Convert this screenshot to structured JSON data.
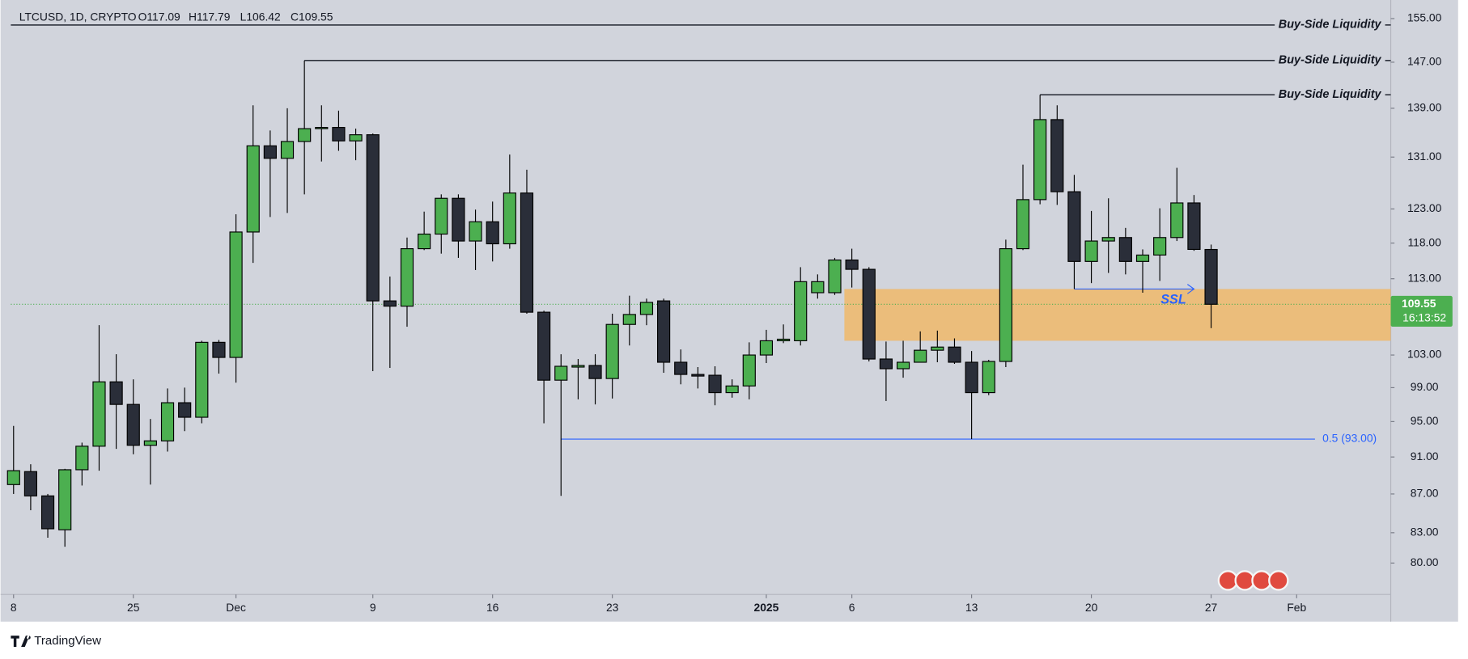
{
  "chart_data": {
    "type": "candlestick",
    "symbol": "LTCUSD, 1D, CRYPTO",
    "ohlc_labels": [
      "O117.09",
      "H117.79",
      "L106.42",
      "C109.55"
    ],
    "log_scale": true,
    "up_color": "#4caf50",
    "down_color": "#2a2e39",
    "background": "#d1d4dc",
    "x": [
      0,
      1,
      2,
      3,
      4,
      5,
      6,
      7,
      8,
      9,
      10,
      11,
      12,
      13,
      14,
      15,
      16,
      17,
      18,
      19,
      20,
      21,
      22,
      23,
      24,
      25,
      26,
      27,
      28,
      29,
      30,
      31,
      32,
      33,
      34,
      35,
      36,
      37,
      38,
      39,
      40,
      41,
      42,
      43,
      44,
      45,
      46,
      47,
      48,
      49,
      50,
      51,
      52,
      53,
      54,
      55,
      56,
      57,
      58,
      59,
      60,
      61,
      62,
      63,
      64,
      65,
      66,
      67,
      68,
      69,
      70
    ],
    "open": [
      88,
      89.4,
      86.8,
      83.3,
      89.6,
      92.2,
      99.7,
      97,
      92.3,
      92.8,
      97.2,
      95.5,
      104.6,
      102.7,
      119.6,
      132.8,
      130.8,
      133.5,
      135.6,
      135.8,
      133.6,
      134.6,
      110,
      109.3,
      117.2,
      119.3,
      124.6,
      118.3,
      121.1,
      117.9,
      125.4,
      108.5,
      99.9,
      101.5,
      101.7,
      100.1,
      106.9,
      108.2,
      110,
      102.1,
      100.6,
      100.5,
      98.4,
      99.2,
      103,
      104.8,
      104.8,
      111.1,
      111.1,
      115.6,
      114.3,
      102.5,
      101.3,
      102.1,
      103.6,
      104,
      102.1,
      98.4,
      102.2,
      117.2,
      124.4,
      137.1,
      125.6,
      115.4,
      118.3,
      118.8,
      115.4,
      116.3,
      118.8,
      123.9,
      117.09
    ],
    "high": [
      94.5,
      90.2,
      87,
      89.7,
      92.6,
      106.8,
      103.1,
      100,
      95.3,
      98.9,
      99,
      104.8,
      104.9,
      122.2,
      139.5,
      135.3,
      139,
      147.3,
      139.5,
      138.6,
      135.6,
      134.8,
      113.3,
      118.8,
      122.6,
      125.2,
      125.2,
      122.9,
      124.1,
      131.4,
      129,
      108.7,
      103.1,
      102.5,
      103.1,
      108.3,
      110.7,
      110.3,
      110.3,
      103.7,
      101.5,
      101.6,
      100,
      104.6,
      106.2,
      106.9,
      114.6,
      113.6,
      115.9,
      117.2,
      114.6,
      104.7,
      104.8,
      106,
      106.1,
      105.1,
      103.5,
      102.4,
      118.5,
      129.8,
      141.3,
      139.5,
      128.2,
      122.7,
      124.6,
      120.2,
      117.1,
      123.1,
      129.3,
      125.1,
      117.79
    ],
    "low": [
      87,
      85.3,
      82.5,
      81.6,
      87.9,
      89.5,
      91.9,
      91.3,
      88,
      91.6,
      93.9,
      94.8,
      100.7,
      99.6,
      115.2,
      121.8,
      122.4,
      125.2,
      130.3,
      132,
      130.5,
      101,
      101.4,
      106.6,
      117,
      116.5,
      115.9,
      114.2,
      115.4,
      117.2,
      108.3,
      94.8,
      86.8,
      97.6,
      97,
      97.7,
      104.2,
      106.8,
      100.8,
      99.4,
      98.9,
      96.9,
      97.8,
      97.6,
      102,
      104.5,
      104.2,
      110.3,
      110.8,
      111.8,
      102.2,
      97.4,
      100.2,
      102.1,
      102.1,
      101.9,
      93,
      98.1,
      101.5,
      117,
      123.7,
      123.6,
      111.6,
      112.4,
      113.8,
      113.6,
      111.1,
      112.7,
      118.3,
      116.9,
      106.42
    ],
    "close": [
      89.5,
      86.8,
      83.4,
      89.6,
      92.2,
      99.7,
      97,
      92.3,
      92.8,
      97.2,
      95.5,
      104.6,
      102.7,
      119.6,
      132.8,
      130.8,
      133.5,
      135.6,
      135.8,
      133.6,
      134.6,
      110,
      109.3,
      117.2,
      119.3,
      124.6,
      118.3,
      121.1,
      117.9,
      125.4,
      108.5,
      99.9,
      101.6,
      101.7,
      100.1,
      106.9,
      108.2,
      109.8,
      102.1,
      100.6,
      100.4,
      98.4,
      99.2,
      103,
      104.8,
      105,
      112.6,
      112.6,
      115.6,
      114.3,
      102.5,
      101.3,
      102.1,
      103.6,
      104,
      102.1,
      98.4,
      102.2,
      117.2,
      124.4,
      137.1,
      125.6,
      115.4,
      118.3,
      118.8,
      115.4,
      116.3,
      118.8,
      123.9,
      117.1,
      109.55
    ],
    "xlim": [
      -0.16,
      80.5
    ],
    "xticks": [
      {
        "value": 0,
        "label": "8"
      },
      {
        "value": 7,
        "label": "25"
      },
      {
        "value": 13,
        "label": "Dec"
      },
      {
        "value": 21,
        "label": "9"
      },
      {
        "value": 28,
        "label": "16"
      },
      {
        "value": 35,
        "label": "23"
      },
      {
        "value": 44,
        "label": "2025"
      },
      {
        "value": 49,
        "label": "6"
      },
      {
        "value": 56,
        "label": "13"
      },
      {
        "value": 63,
        "label": "20"
      },
      {
        "value": 70,
        "label": "27"
      },
      {
        "value": 75,
        "label": "Feb"
      }
    ],
    "ylim": [
      77,
      158
    ],
    "yticks": [
      {
        "value": 155,
        "label": "155.00"
      },
      {
        "value": 147,
        "label": "147.00"
      },
      {
        "value": 139,
        "label": "139.00"
      },
      {
        "value": 131,
        "label": "131.00"
      },
      {
        "value": 123,
        "label": "123.00"
      },
      {
        "value": 118,
        "label": "118.00"
      },
      {
        "value": 113,
        "label": "113.00"
      },
      {
        "value": 103,
        "label": "103.00"
      },
      {
        "value": 99,
        "label": "99.00"
      },
      {
        "value": 95,
        "label": "95.00"
      },
      {
        "value": 91,
        "label": "91.00"
      },
      {
        "value": 87,
        "label": "87.00"
      },
      {
        "value": 83,
        "label": "83.00"
      },
      {
        "value": 80,
        "label": "80.00"
      }
    ],
    "last_price": {
      "value": 109.55,
      "label": "109.55"
    },
    "countdown": "16:13:52",
    "liquidity_lines": [
      {
        "label": "Buy-Side Liquidity",
        "y": 153.8
      },
      {
        "label": "Buy-Side Liquidity",
        "y": 147.3,
        "x0": 17
      },
      {
        "label": "Buy-Side Liquidity",
        "y": 141.3,
        "x0": 60
      }
    ],
    "fib_line": {
      "label": "0.5 (93.00)",
      "y": 93,
      "x0": 32,
      "color": "#2962ff"
    },
    "ssl": {
      "label": "SSL",
      "y": 111.6,
      "x0": 62,
      "x1": 69,
      "color": "#2962ff"
    },
    "zone": {
      "top": 111.6,
      "bottom": 104.8,
      "x0": 49,
      "color": "#f0b86a"
    }
  },
  "footer": {
    "brand": "TradingView"
  }
}
